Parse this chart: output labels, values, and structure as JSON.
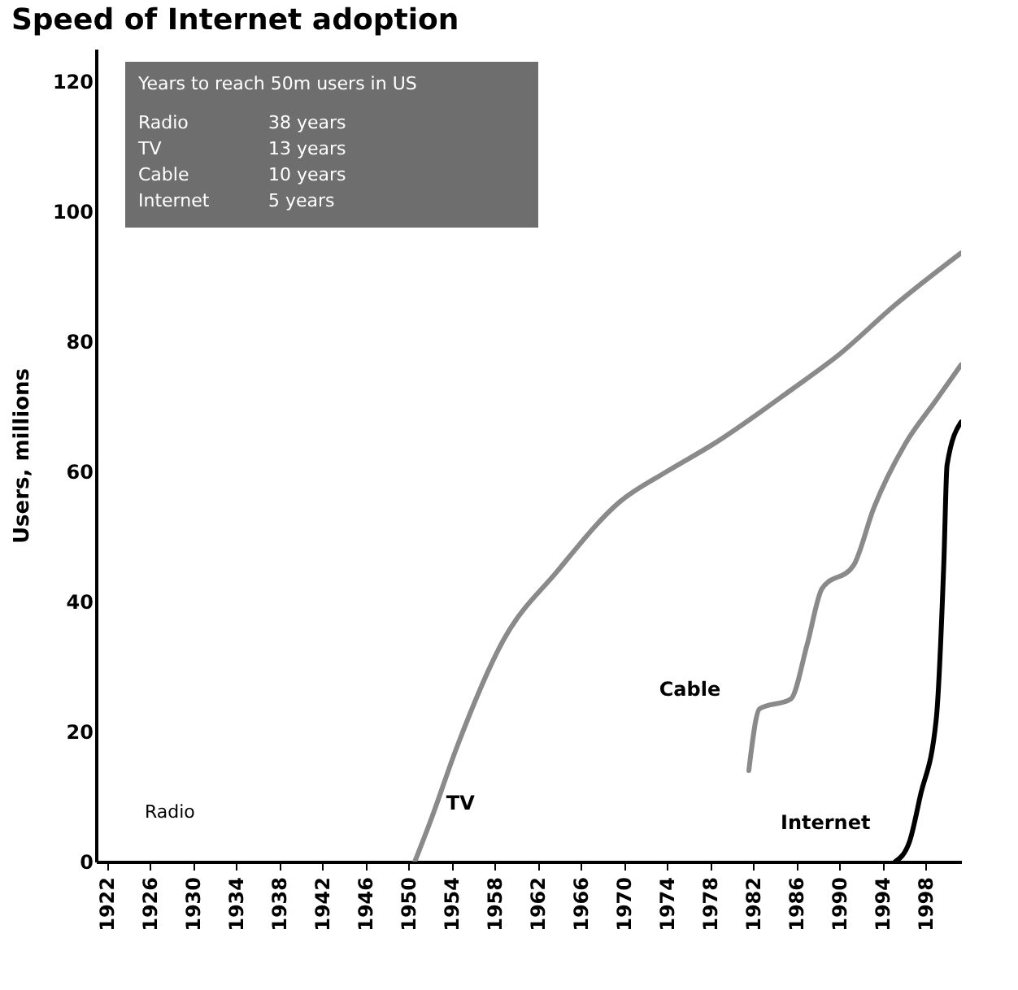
{
  "chart_data": {
    "type": "line",
    "title": "Speed of Internet adoption",
    "ylabel": "Users, millions",
    "xlim": [
      1921,
      2001.3
    ],
    "xticks": [
      1922,
      1926,
      1930,
      1934,
      1938,
      1942,
      1946,
      1950,
      1954,
      1958,
      1962,
      1966,
      1970,
      1974,
      1978,
      1982,
      1986,
      1990,
      1994,
      1998
    ],
    "ylim": [
      0,
      125
    ],
    "yticks": [
      0,
      20,
      40,
      60,
      80,
      100,
      120
    ],
    "series": [
      {
        "name": "TV",
        "color": "#8a8a8a",
        "x": [
          1950.6,
          1952,
          1954.5,
          1958.8,
          1963.8,
          1969.6,
          1974,
          1978.3,
          1985.5,
          1990,
          1995.1,
          2001.3
        ],
        "values": [
          0,
          6,
          17.6,
          34,
          44.6,
          55.3,
          60,
          64.2,
          72.5,
          78,
          85.5,
          93.6
        ]
      },
      {
        "name": "Cable",
        "color": "#8a8a8a",
        "x": [
          1981.6,
          1982.6,
          1985.5,
          1987,
          1988.4,
          1991.3,
          1993.2,
          1996.1,
          1999,
          2001.3
        ],
        "values": [
          14,
          23.5,
          25,
          33.3,
          42,
          45.5,
          54.4,
          64.2,
          71,
          76.4
        ]
      },
      {
        "name": "Internet",
        "color": "#000000",
        "x": [
          1995.2,
          1996.5,
          1997.5,
          1999,
          1999.7,
          2000,
          2001.3
        ],
        "values": [
          0,
          3,
          10,
          22,
          46,
          61,
          67.6
        ]
      }
    ],
    "annotations": [
      "Radio",
      "Years to reach 50m users in US",
      "Radio",
      "38 years",
      "TV",
      "13 years",
      "Cable",
      "10 years",
      "Internet",
      "5 years"
    ]
  }
}
